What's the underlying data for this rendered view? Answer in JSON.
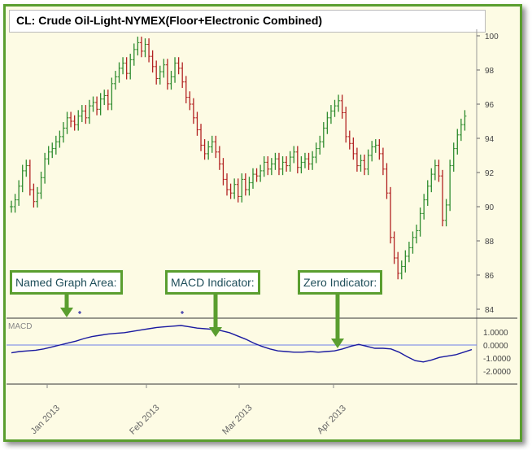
{
  "title": "CL: Crude Oil-Light-NYMEX(Floor+Electronic Combined)",
  "callouts": {
    "named_graph_area": "Named Graph Area:",
    "macd_indicator": "MACD Indicator:",
    "zero_indicator": "Zero Indicator:"
  },
  "colors": {
    "accent": "#5a9e2f",
    "up_bar": "#2e8b2e",
    "down_bar": "#b22222",
    "macd_line": "#1a1aa0",
    "zero_line": "#6a7fe8",
    "background": "#fdfbe4"
  },
  "chart_data": [
    {
      "type": "ohlc",
      "price_ticks": [
        "100",
        "98",
        "96",
        "94",
        "92",
        "90",
        "88",
        "86",
        "84"
      ],
      "ylim": [
        84,
        100
      ],
      "date_labels": [
        "Jan 2013",
        "Feb 2013",
        "Mar 2013",
        "Apr 2013"
      ],
      "close_series": [
        90.0,
        90.4,
        91.2,
        92.1,
        92.4,
        91.0,
        90.3,
        90.8,
        91.7,
        92.8,
        93.2,
        93.4,
        93.8,
        94.1,
        94.6,
        95.2,
        95.0,
        94.8,
        95.3,
        95.6,
        95.2,
        95.9,
        96.1,
        95.7,
        96.3,
        96.5,
        96.0,
        97.2,
        97.6,
        98.1,
        98.4,
        97.8,
        98.6,
        99.2,
        99.6,
        99.1,
        99.5,
        98.8,
        98.2,
        97.5,
        97.9,
        98.3,
        97.2,
        97.6,
        98.4,
        98.1,
        97.3,
        96.4,
        96.0,
        95.2,
        94.5,
        93.6,
        93.1,
        93.5,
        93.8,
        93.2,
        92.5,
        91.6,
        91.0,
        90.8,
        91.3,
        90.6,
        91.6,
        91.0,
        91.4,
        91.9,
        91.8,
        92.1,
        92.6,
        92.2,
        92.5,
        92.8,
        92.2,
        92.6,
        92.4,
        92.9,
        93.2,
        92.3,
        92.6,
        92.8,
        92.5,
        92.9,
        93.4,
        93.8,
        94.6,
        95.2,
        95.6,
        95.9,
        96.2,
        95.5,
        94.1,
        93.7,
        93.1,
        92.4,
        92.7,
        92.2,
        93.0,
        93.5,
        93.6,
        93.1,
        92.2,
        90.8,
        88.2,
        87.0,
        86.1,
        86.5,
        87.1,
        87.6,
        88.2,
        88.6,
        89.6,
        90.4,
        91.2,
        91.9,
        92.4,
        91.8,
        89.2,
        90.1,
        92.4,
        93.4,
        94.2,
        94.8,
        95.3
      ]
    },
    {
      "type": "line",
      "title": "MACD",
      "y_ticks": [
        "1.0000",
        "0.0000",
        "-1.0000",
        "-2.0000"
      ],
      "ylim": [
        -2.5,
        1.5
      ],
      "zero_line": 0,
      "values": [
        -0.6,
        -0.5,
        -0.45,
        -0.4,
        -0.3,
        -0.15,
        0.0,
        0.15,
        0.3,
        0.5,
        0.65,
        0.75,
        0.85,
        0.9,
        0.95,
        1.05,
        1.15,
        1.25,
        1.35,
        1.4,
        1.45,
        1.5,
        1.4,
        1.3,
        1.25,
        1.2,
        1.1,
        0.95,
        0.7,
        0.45,
        0.15,
        -0.1,
        -0.3,
        -0.45,
        -0.5,
        -0.55,
        -0.55,
        -0.5,
        -0.55,
        -0.5,
        -0.45,
        -0.3,
        -0.1,
        0.05,
        -0.1,
        -0.25,
        -0.25,
        -0.3,
        -0.55,
        -0.9,
        -1.2,
        -1.3,
        -1.15,
        -0.95,
        -0.85,
        -0.75,
        -0.55,
        -0.35
      ]
    }
  ]
}
